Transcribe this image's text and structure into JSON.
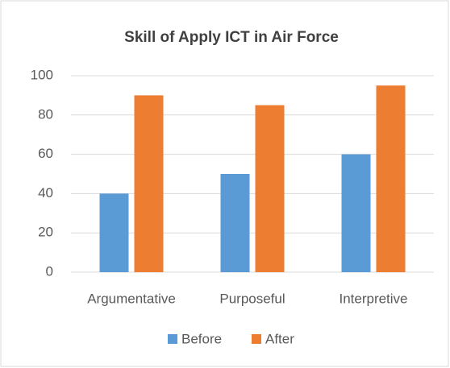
{
  "chart_data": {
    "type": "bar",
    "title": "Skill of Apply ICT in Air Force",
    "categories": [
      "Argumentative",
      "Purposeful",
      "Interpretive"
    ],
    "series": [
      {
        "name": "Before",
        "color": "#5b9bd5",
        "values": [
          40,
          50,
          60
        ]
      },
      {
        "name": "After",
        "color": "#ed7d31",
        "values": [
          90,
          85,
          95
        ]
      }
    ],
    "ylim": [
      0,
      100
    ],
    "yticks": [
      0,
      20,
      40,
      60,
      80,
      100
    ],
    "grid": true,
    "legend": "bottom"
  }
}
